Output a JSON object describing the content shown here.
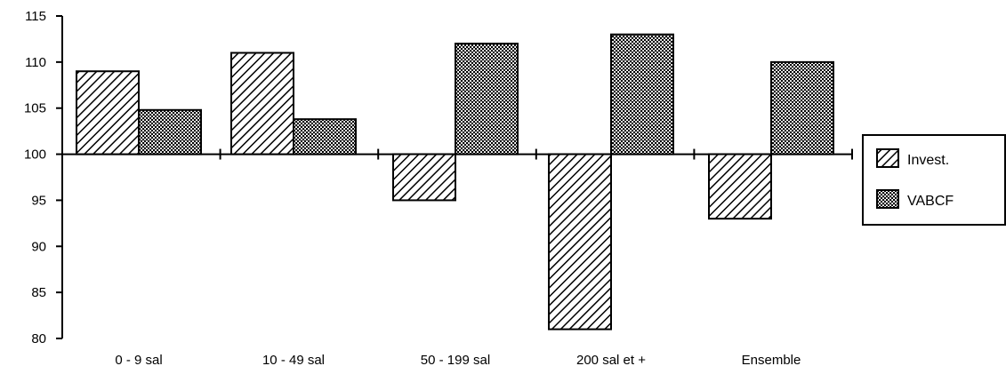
{
  "chart_data": {
    "type": "bar",
    "title": "",
    "xlabel": "",
    "ylabel": "",
    "baseline": 100,
    "ylim": [
      80,
      115
    ],
    "yticks": [
      80,
      85,
      90,
      95,
      100,
      105,
      110,
      115
    ],
    "categories": [
      "0 - 9 sal",
      "10 - 49 sal",
      "50 - 199 sal",
      "200 sal et +",
      "Ensemble"
    ],
    "series": [
      {
        "name": "Invest.",
        "pattern": "diagonal-hatch",
        "values": [
          109,
          111,
          95,
          81,
          93
        ]
      },
      {
        "name": "VABCF",
        "pattern": "dotted",
        "values": [
          104.8,
          103.8,
          112,
          113,
          110
        ]
      }
    ],
    "legend": "right",
    "grid": false,
    "colors": {
      "ink": "#000000",
      "background": "#ffffff"
    }
  }
}
